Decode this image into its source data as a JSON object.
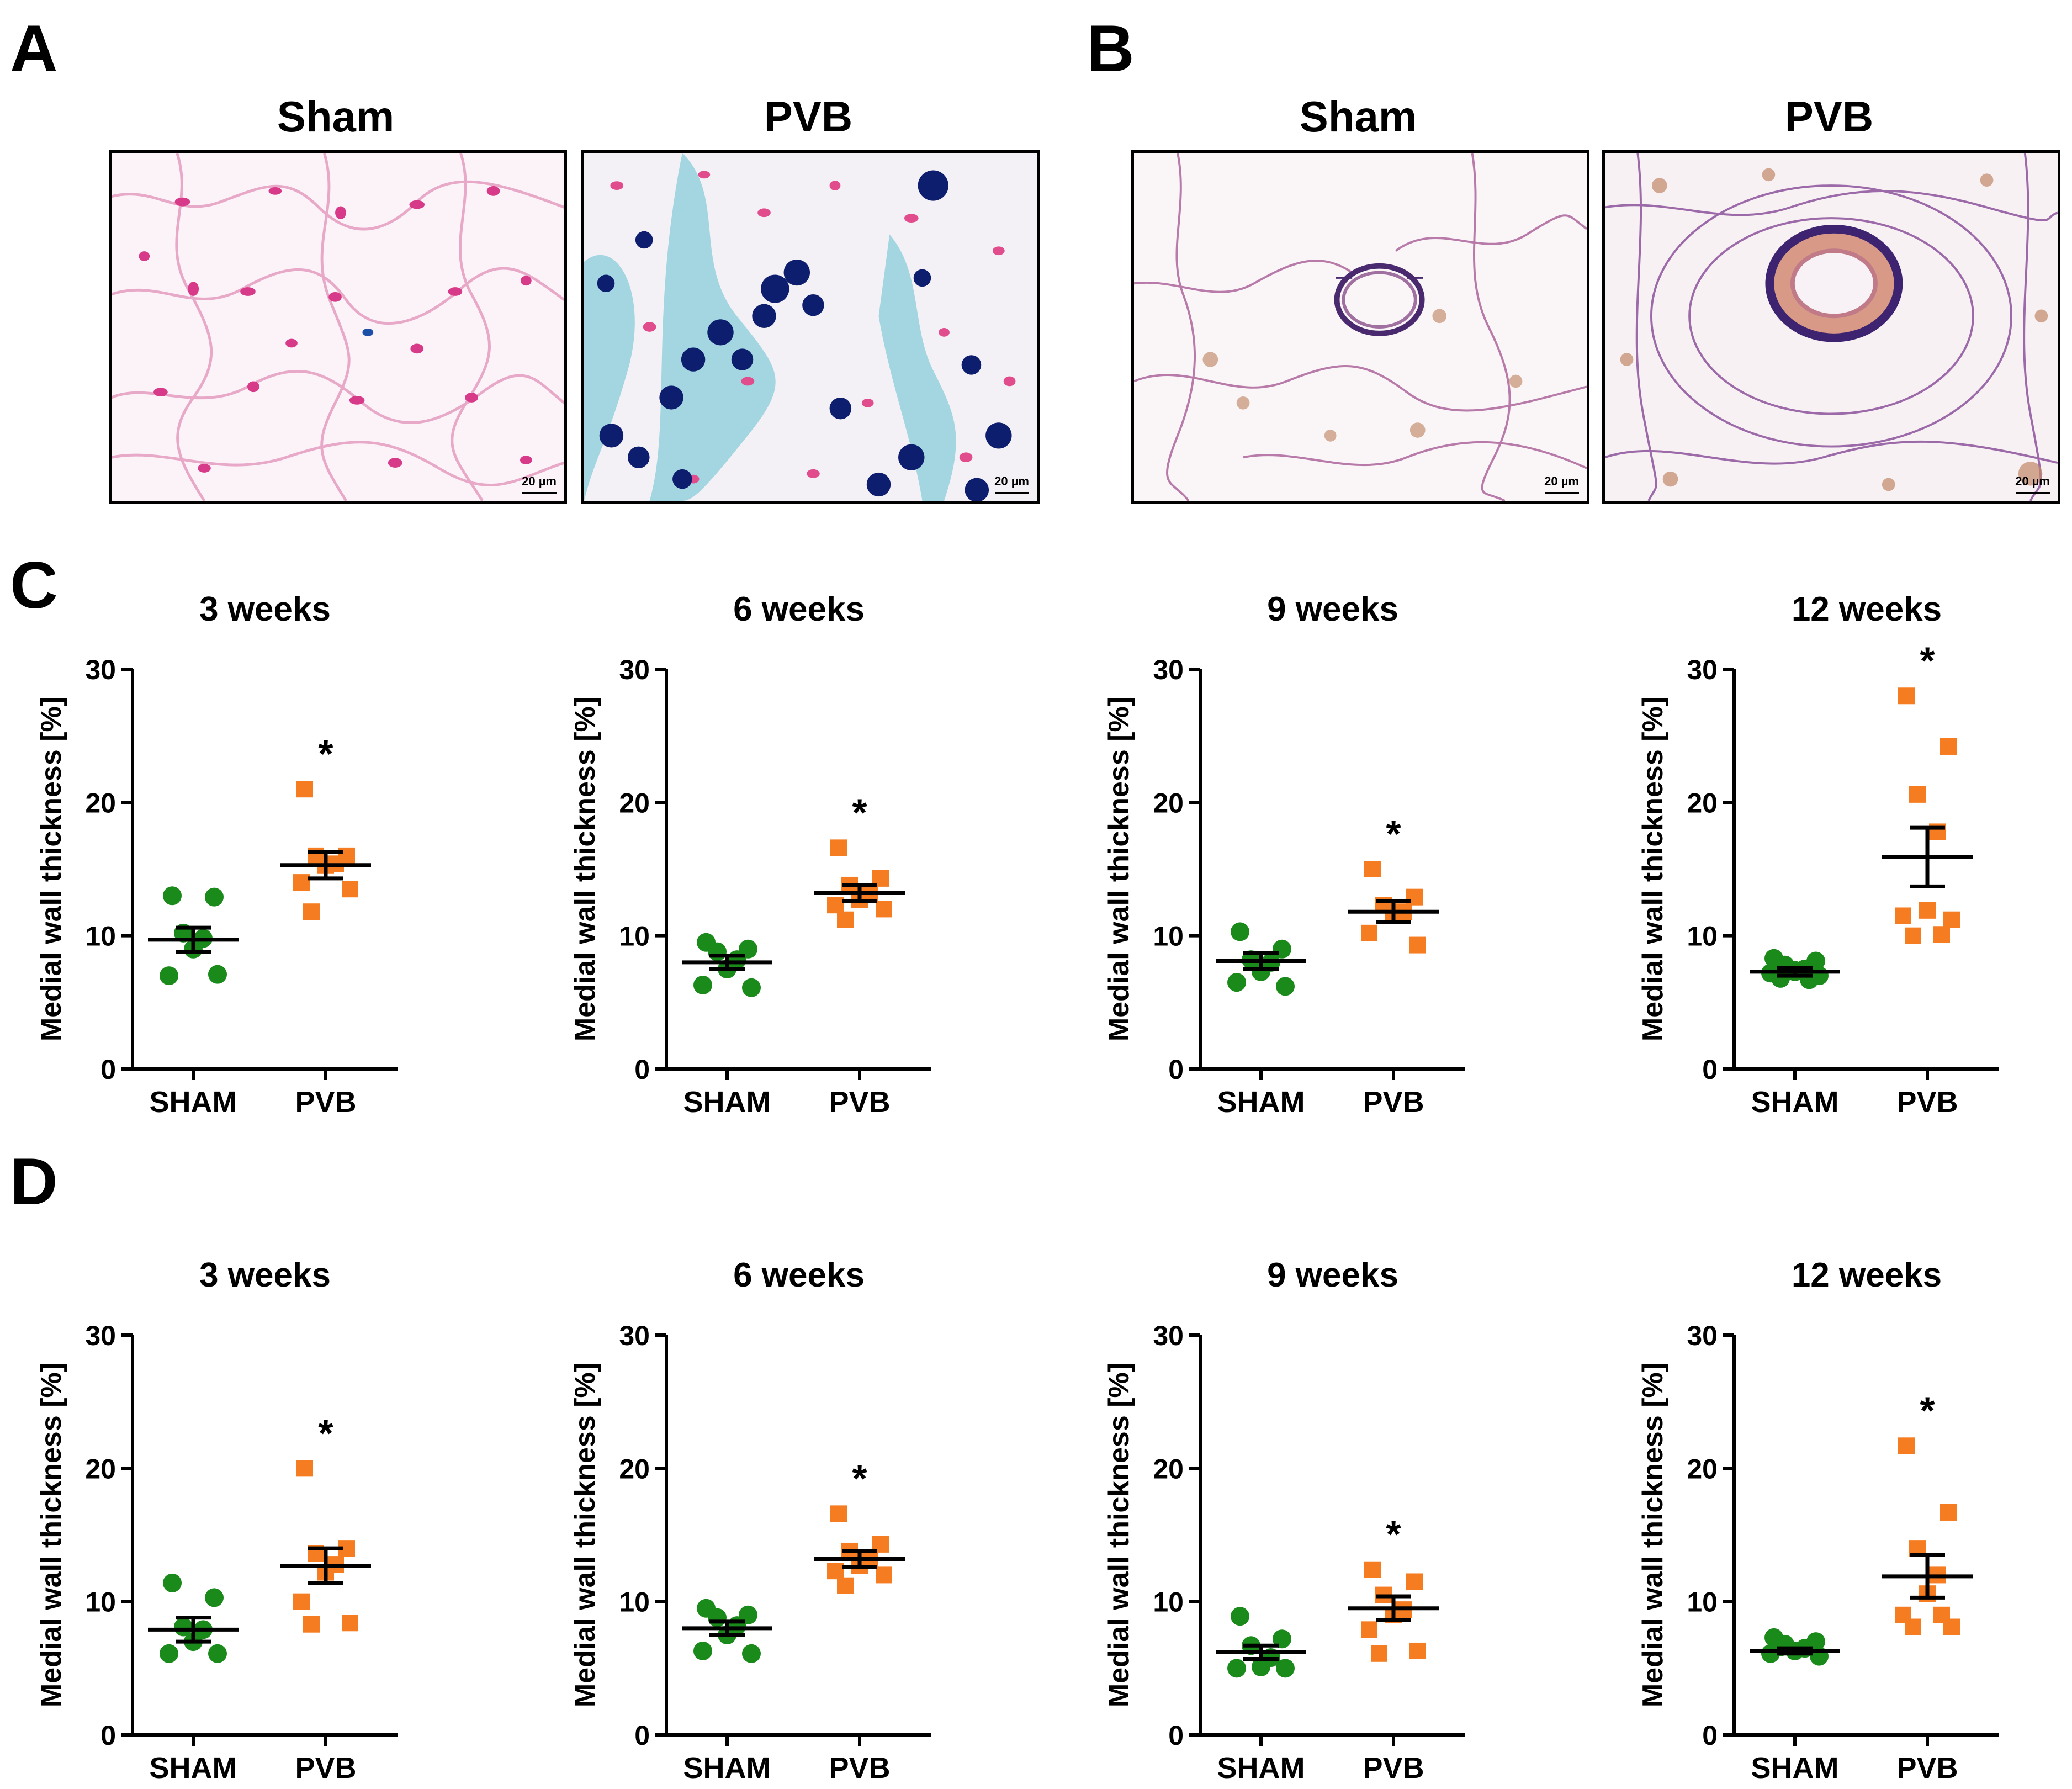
{
  "figure": {
    "panel_labels": {
      "a": "A",
      "b": "B",
      "c": "C",
      "d": "D"
    },
    "micrographs": {
      "a_left": {
        "title": "Sham",
        "scale": "20 µm"
      },
      "a_right": {
        "title": "PVB",
        "scale": "20 µm"
      },
      "b_left": {
        "title": "Sham",
        "scale": "20 µm"
      },
      "b_right": {
        "title": "PVB",
        "scale": "20 µm"
      }
    }
  },
  "colors": {
    "sham": "#1a8a1a",
    "pvb": "#f57c20",
    "axis": "#000000",
    "star": "#000000"
  },
  "chart_data": [
    {
      "panel": "C",
      "type": "scatter",
      "title": "3 weeks",
      "ylabel": "Medial wall thickness [%]",
      "ylim": [
        0,
        30
      ],
      "yticks": [
        0,
        10,
        20,
        30
      ],
      "categories": [
        "SHAM",
        "PVB"
      ],
      "significance": "*",
      "series": [
        {
          "name": "SHAM",
          "marker": "circle",
          "values": [
            13.0,
            12.9,
            10.2,
            9.8,
            9.0,
            7.0,
            7.1
          ],
          "mean": 9.7,
          "sem": 0.9
        },
        {
          "name": "PVB",
          "marker": "square",
          "values": [
            21.0,
            16.0,
            16.0,
            15.4,
            15.3,
            14.0,
            13.5,
            11.8
          ],
          "mean": 15.3,
          "sem": 1.0
        }
      ]
    },
    {
      "panel": "C",
      "type": "scatter",
      "title": "6 weeks",
      "ylabel": "Medial wall thickness [%]",
      "ylim": [
        0,
        30
      ],
      "yticks": [
        0,
        10,
        20,
        30
      ],
      "categories": [
        "SHAM",
        "PVB"
      ],
      "significance": "*",
      "series": [
        {
          "name": "SHAM",
          "marker": "circle",
          "values": [
            9.5,
            9.0,
            8.8,
            8.2,
            7.5,
            6.3,
            6.1
          ],
          "mean": 8.0,
          "sem": 0.5
        },
        {
          "name": "PVB",
          "marker": "square",
          "values": [
            16.6,
            14.3,
            13.8,
            13.2,
            12.7,
            12.3,
            12.0,
            11.2
          ],
          "mean": 13.2,
          "sem": 0.6
        }
      ]
    },
    {
      "panel": "C",
      "type": "scatter",
      "title": "9 weeks",
      "ylabel": "Medial wall thickness [%]",
      "ylim": [
        0,
        30
      ],
      "yticks": [
        0,
        10,
        20,
        30
      ],
      "categories": [
        "SHAM",
        "PVB"
      ],
      "significance": "*",
      "series": [
        {
          "name": "SHAM",
          "marker": "circle",
          "values": [
            10.3,
            9.0,
            8.2,
            8.0,
            7.3,
            6.5,
            6.2
          ],
          "mean": 8.1,
          "sem": 0.6
        },
        {
          "name": "PVB",
          "marker": "square",
          "values": [
            15.0,
            12.9,
            12.3,
            11.8,
            11.6,
            10.2,
            9.3
          ],
          "mean": 11.8,
          "sem": 0.8
        }
      ]
    },
    {
      "panel": "C",
      "type": "scatter",
      "title": "12 weeks",
      "ylabel": "Medial wall thickness [%]",
      "ylim": [
        0,
        30
      ],
      "yticks": [
        0,
        10,
        20,
        30
      ],
      "categories": [
        "SHAM",
        "PVB"
      ],
      "significance": "*",
      "series": [
        {
          "name": "SHAM",
          "marker": "circle",
          "values": [
            8.3,
            8.1,
            7.8,
            7.5,
            7.3,
            7.2,
            7.0,
            6.8,
            6.7,
            7.4
          ],
          "mean": 7.3,
          "sem": 0.3
        },
        {
          "name": "PVB",
          "marker": "square",
          "values": [
            28.0,
            24.2,
            20.6,
            17.8,
            11.9,
            11.5,
            11.2,
            10.0,
            10.1
          ],
          "mean": 15.9,
          "sem": 2.2
        }
      ]
    },
    {
      "panel": "D",
      "type": "scatter",
      "title": "3 weeks",
      "ylabel": "Medial wall thickness [%]",
      "ylim": [
        0,
        30
      ],
      "yticks": [
        0,
        10,
        20,
        30
      ],
      "categories": [
        "SHAM",
        "PVB"
      ],
      "significance": "*",
      "series": [
        {
          "name": "SHAM",
          "marker": "circle",
          "values": [
            11.4,
            10.3,
            8.1,
            7.9,
            7.0,
            6.1,
            6.1
          ],
          "mean": 7.9,
          "sem": 0.9
        },
        {
          "name": "PVB",
          "marker": "square",
          "values": [
            20.0,
            14.0,
            13.6,
            12.8,
            12.2,
            10.0,
            8.4,
            8.3
          ],
          "mean": 12.7,
          "sem": 1.3
        }
      ]
    },
    {
      "panel": "D",
      "type": "scatter",
      "title": "6 weeks",
      "ylabel": "Medial wall thickness [%]",
      "ylim": [
        0,
        30
      ],
      "yticks": [
        0,
        10,
        20,
        30
      ],
      "categories": [
        "SHAM",
        "PVB"
      ],
      "significance": "*",
      "series": [
        {
          "name": "SHAM",
          "marker": "circle",
          "values": [
            9.5,
            9.0,
            8.8,
            8.2,
            7.5,
            6.3,
            6.1
          ],
          "mean": 8.0,
          "sem": 0.5
        },
        {
          "name": "PVB",
          "marker": "square",
          "values": [
            16.6,
            14.3,
            13.8,
            13.2,
            12.7,
            12.3,
            12.0,
            11.2
          ],
          "mean": 13.2,
          "sem": 0.6
        }
      ]
    },
    {
      "panel": "D",
      "type": "scatter",
      "title": "9 weeks",
      "ylabel": "Medial wall thickness [%]",
      "ylim": [
        0,
        30
      ],
      "yticks": [
        0,
        10,
        20,
        30
      ],
      "categories": [
        "SHAM",
        "PVB"
      ],
      "significance": "*",
      "series": [
        {
          "name": "SHAM",
          "marker": "circle",
          "values": [
            8.9,
            7.2,
            6.7,
            5.8,
            5.1,
            5.0,
            5.0
          ],
          "mean": 6.2,
          "sem": 0.5
        },
        {
          "name": "PVB",
          "marker": "square",
          "values": [
            12.4,
            11.5,
            10.5,
            9.4,
            9.0,
            7.9,
            6.3,
            6.1
          ],
          "mean": 9.5,
          "sem": 0.9
        }
      ]
    },
    {
      "panel": "D",
      "type": "scatter",
      "title": "12 weeks",
      "ylabel": "Medial wall thickness [%]",
      "ylim": [
        0,
        30
      ],
      "yticks": [
        0,
        10,
        20,
        30
      ],
      "categories": [
        "SHAM",
        "PVB"
      ],
      "significance": "*",
      "series": [
        {
          "name": "SHAM",
          "marker": "circle",
          "values": [
            7.3,
            7.0,
            6.8,
            6.5,
            6.3,
            6.1,
            5.9,
            6.6
          ],
          "mean": 6.3,
          "sem": 0.2
        },
        {
          "name": "PVB",
          "marker": "square",
          "values": [
            21.7,
            16.7,
            14.0,
            12.0,
            10.6,
            9.0,
            8.1,
            8.1,
            9.0
          ],
          "mean": 11.9,
          "sem": 1.6
        }
      ]
    }
  ]
}
